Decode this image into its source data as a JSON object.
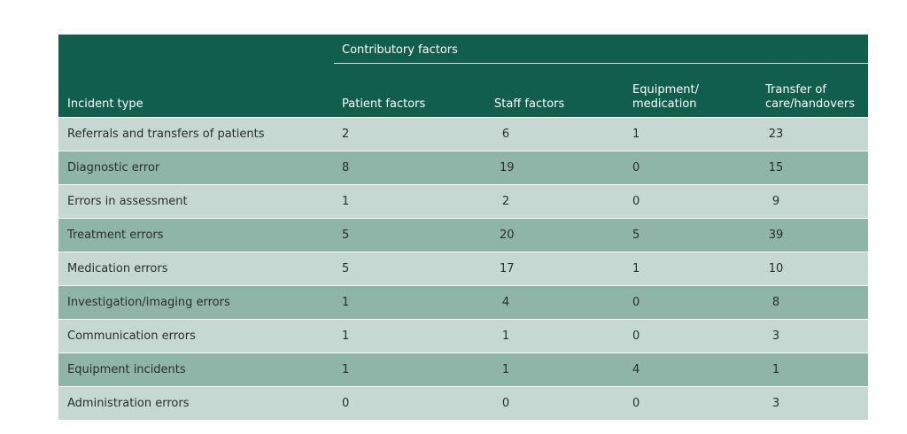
{
  "table": {
    "group_header": "Contributory factors",
    "columns": [
      "Incident type",
      "Patient factors",
      "Staff factors",
      "Equipment/\nmedication",
      "Transfer of\ncare/handovers"
    ],
    "rows": [
      [
        "Referrals and transfers of patients",
        "2",
        "6",
        "1",
        "23"
      ],
      [
        "Diagnostic error",
        "8",
        "19",
        "0",
        "15"
      ],
      [
        "Errors in assessment",
        "1",
        "2",
        "0",
        "9"
      ],
      [
        "Treatment errors",
        "5",
        "20",
        "5",
        "39"
      ],
      [
        "Medication errors",
        "5",
        "17",
        "1",
        "10"
      ],
      [
        "Investigation/imaging errors",
        "1",
        "4",
        "0",
        "8"
      ],
      [
        "Communication errors",
        "1",
        "1",
        "0",
        "3"
      ],
      [
        "Equipment incidents",
        "1",
        "1",
        "4",
        "1"
      ],
      [
        "Administration errors",
        "0",
        "0",
        "0",
        "3"
      ]
    ]
  },
  "colors": {
    "header_bg": "#115e4c",
    "row_light": "#c5d9d2",
    "row_dark": "#8fb4a8"
  }
}
